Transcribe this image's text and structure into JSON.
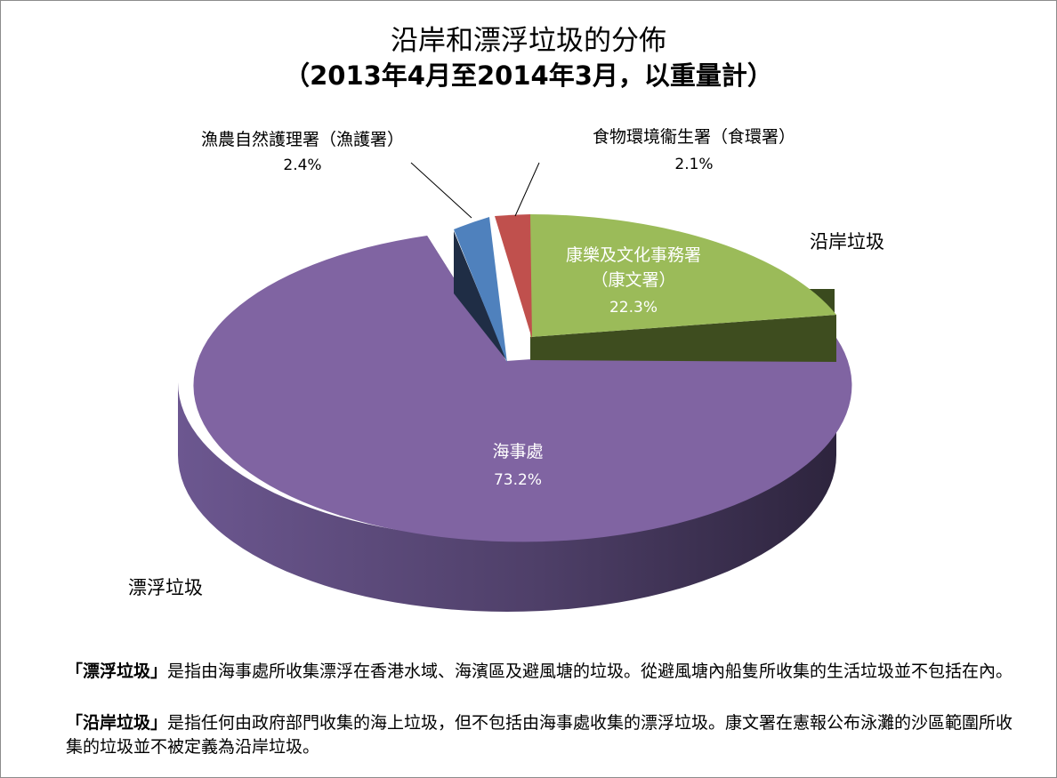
{
  "title": {
    "line1": "沿岸和漂浮垃圾的分佈",
    "line2": "（2013年4月至2014年3月，以重量計）"
  },
  "chart_data": {
    "type": "pie",
    "slices": [
      {
        "label": "康樂及文化事務署",
        "sublabel": "（康文署）",
        "value": 22.3,
        "value_label": "22.3%",
        "color": "#9bbb59",
        "group": "沿岸垃圾"
      },
      {
        "label": "海事處",
        "sublabel": "",
        "value": 73.2,
        "value_label": "73.2%",
        "color": "#8064a2",
        "group": "漂浮垃圾"
      },
      {
        "label": "漁農自然護理署（漁護署）",
        "sublabel": "",
        "value": 2.4,
        "value_label": "2.4%",
        "color": "#4f81bd",
        "group": "沿岸垃圾"
      },
      {
        "label": "食物環境衞生署（食環署）",
        "sublabel": "",
        "value": 2.1,
        "value_label": "2.1%",
        "color": "#c0504d",
        "group": "沿岸垃圾"
      }
    ],
    "group_labels": [
      "沿岸垃圾",
      "漂浮垃圾"
    ]
  },
  "notes": [
    {
      "term": "「漂浮垃圾」",
      "text": "是指由海事處所收集漂浮在香港水域、海濱區及避風塘的垃圾。從避風塘內船隻所收集的生活垃圾並不包括在內。"
    },
    {
      "term": "「沿岸垃圾」",
      "text": "是指任何由政府部門收集的海上垃圾，但不包括由海事處收集的漂浮垃圾。康文署在憲報公布泳灘的沙區範圍所收集的垃圾並不被定義為沿岸垃圾。"
    }
  ]
}
